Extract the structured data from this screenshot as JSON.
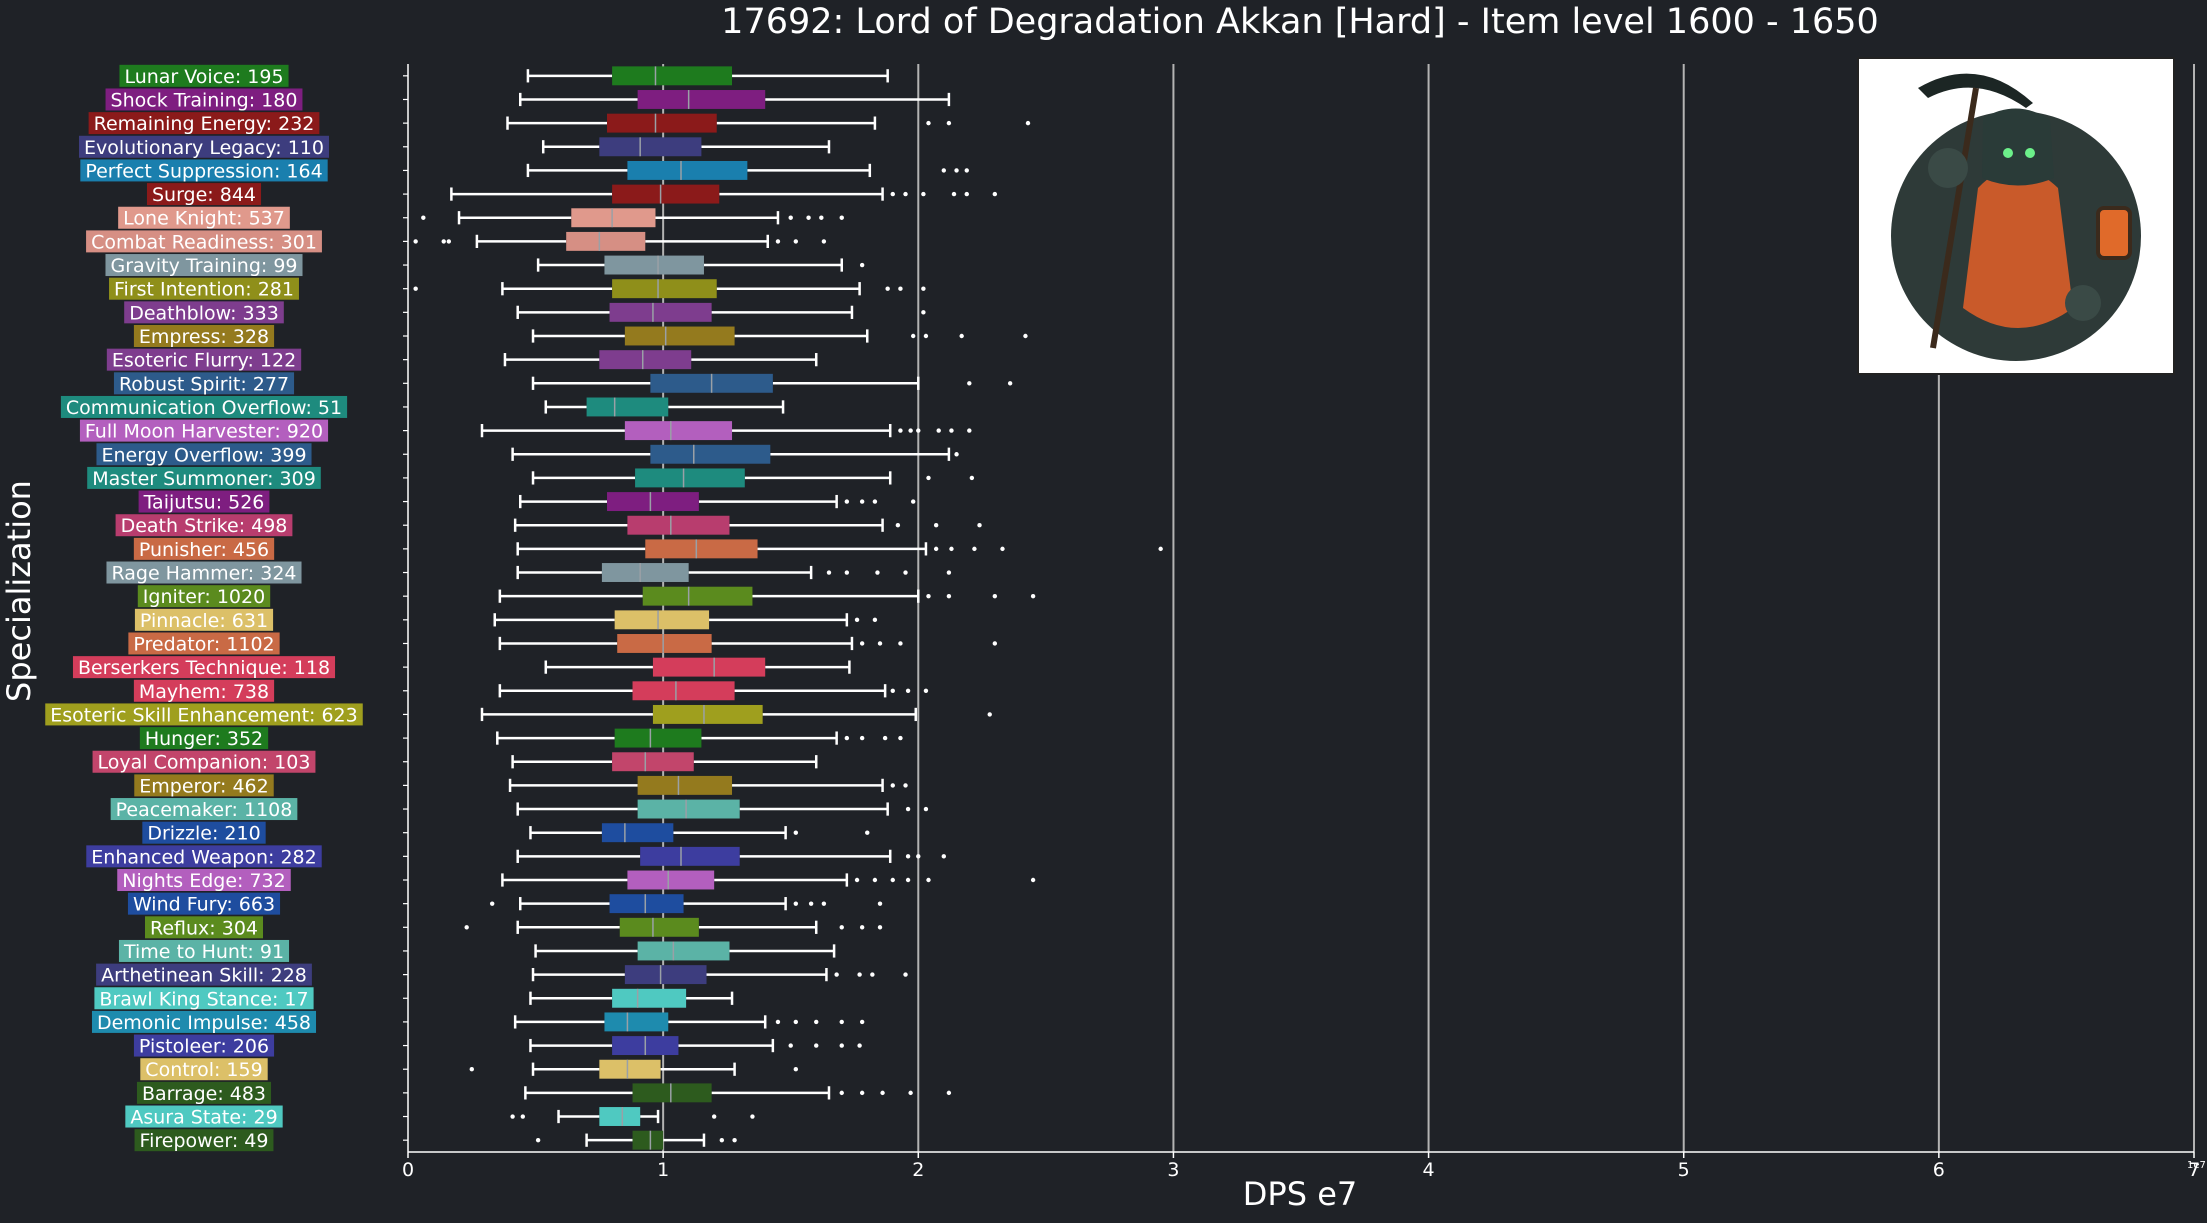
{
  "chart_data": {
    "type": "box",
    "title": "17692: Lord of Degradation Akkan [Hard] - Item level 1600 - 1650",
    "xlabel": "DPS e7",
    "ylabel": "Specialization",
    "offset_label": "1e7",
    "xlim": [
      0,
      7
    ],
    "xticks": [
      0,
      1,
      2,
      3,
      4,
      5,
      6,
      7
    ],
    "grid": "vertical",
    "categories": [
      {
        "label": "Lunar Voice: 195",
        "color": "#1e7b1e",
        "whisker_low": 0.47,
        "q1": 0.8,
        "median": 0.97,
        "q3": 1.27,
        "whisker_high": 1.88,
        "outliers": []
      },
      {
        "label": "Shock Training: 180",
        "color": "#7e1e80",
        "whisker_low": 0.44,
        "q1": 0.9,
        "median": 1.1,
        "q3": 1.4,
        "whisker_high": 2.12,
        "outliers": []
      },
      {
        "label": "Remaining Energy: 232",
        "color": "#8b1a1a",
        "whisker_low": 0.39,
        "q1": 0.78,
        "median": 0.97,
        "q3": 1.21,
        "whisker_high": 1.83,
        "outliers": [
          2.04,
          2.12,
          2.43
        ]
      },
      {
        "label": "Evolutionary Legacy: 110",
        "color": "#3d3d7e",
        "whisker_low": 0.53,
        "q1": 0.75,
        "median": 0.91,
        "q3": 1.15,
        "whisker_high": 1.65,
        "outliers": []
      },
      {
        "label": "Perfect Suppression: 164",
        "color": "#1a7fae",
        "whisker_low": 0.47,
        "q1": 0.86,
        "median": 1.07,
        "q3": 1.33,
        "whisker_high": 1.81,
        "outliers": [
          2.1,
          2.15,
          2.19
        ]
      },
      {
        "label": "Surge: 844",
        "color": "#8b1a1a",
        "whisker_low": 0.17,
        "q1": 0.8,
        "median": 0.99,
        "q3": 1.22,
        "whisker_high": 1.86,
        "outliers": [
          1.9,
          1.95,
          2.02,
          2.14,
          2.19,
          2.3
        ]
      },
      {
        "label": "Lone Knight: 537",
        "color": "#e0998c",
        "whisker_low": 0.2,
        "q1": 0.64,
        "median": 0.8,
        "q3": 0.97,
        "whisker_high": 1.45,
        "outliers": [
          0.06,
          1.5,
          1.57,
          1.62,
          1.7
        ]
      },
      {
        "label": "Combat Readiness: 301",
        "color": "#d68f84",
        "whisker_low": 0.27,
        "q1": 0.62,
        "median": 0.75,
        "q3": 0.93,
        "whisker_high": 1.41,
        "outliers": [
          0.03,
          0.14,
          0.16,
          1.45,
          1.52,
          1.63
        ]
      },
      {
        "label": "Gravity Training: 99",
        "color": "#7f969f",
        "whisker_low": 0.51,
        "q1": 0.77,
        "median": 0.98,
        "q3": 1.16,
        "whisker_high": 1.7,
        "outliers": [
          1.78
        ]
      },
      {
        "label": "First Intention: 281",
        "color": "#8f8f1a",
        "whisker_low": 0.37,
        "q1": 0.8,
        "median": 0.98,
        "q3": 1.21,
        "whisker_high": 1.77,
        "outliers": [
          0.03,
          1.88,
          1.93,
          2.02
        ]
      },
      {
        "label": "Deathblow: 333",
        "color": "#7e3d8e",
        "whisker_low": 0.43,
        "q1": 0.79,
        "median": 0.96,
        "q3": 1.19,
        "whisker_high": 1.74,
        "outliers": [
          2.02
        ]
      },
      {
        "label": "Empress: 328",
        "color": "#947a1e",
        "whisker_low": 0.49,
        "q1": 0.85,
        "median": 1.01,
        "q3": 1.28,
        "whisker_high": 1.8,
        "outliers": [
          1.98,
          2.03,
          2.17,
          2.42
        ]
      },
      {
        "label": "Esoteric Flurry: 122",
        "color": "#7e3d8e",
        "whisker_low": 0.38,
        "q1": 0.75,
        "median": 0.92,
        "q3": 1.11,
        "whisker_high": 1.6,
        "outliers": []
      },
      {
        "label": "Robust Spirit: 277",
        "color": "#2d5b8b",
        "whisker_low": 0.49,
        "q1": 0.95,
        "median": 1.19,
        "q3": 1.43,
        "whisker_high": 2.0,
        "outliers": [
          2.2,
          2.36
        ]
      },
      {
        "label": "Communication Overflow: 51",
        "color": "#1e8b7e",
        "whisker_low": 0.54,
        "q1": 0.7,
        "median": 0.81,
        "q3": 1.02,
        "whisker_high": 1.47,
        "outliers": []
      },
      {
        "label": "Full Moon Harvester: 920",
        "color": "#b35fbe",
        "whisker_low": 0.29,
        "q1": 0.85,
        "median": 1.03,
        "q3": 1.27,
        "whisker_high": 1.89,
        "outliers": [
          1.93,
          1.97,
          2.0,
          2.08,
          2.13,
          2.2
        ]
      },
      {
        "label": "Energy Overflow: 399",
        "color": "#2d5b8b",
        "whisker_low": 0.41,
        "q1": 0.95,
        "median": 1.12,
        "q3": 1.42,
        "whisker_high": 2.12,
        "outliers": [
          2.15
        ]
      },
      {
        "label": "Master Summoner: 309",
        "color": "#1e8b7e",
        "whisker_low": 0.49,
        "q1": 0.89,
        "median": 1.08,
        "q3": 1.32,
        "whisker_high": 1.89,
        "outliers": [
          2.04,
          2.21
        ]
      },
      {
        "label": "Taijutsu: 526",
        "color": "#7e1e80",
        "whisker_low": 0.44,
        "q1": 0.78,
        "median": 0.95,
        "q3": 1.14,
        "whisker_high": 1.68,
        "outliers": [
          1.72,
          1.78,
          1.83,
          1.98
        ]
      },
      {
        "label": "Death Strike: 498",
        "color": "#b83d6e",
        "whisker_low": 0.42,
        "q1": 0.86,
        "median": 1.03,
        "q3": 1.26,
        "whisker_high": 1.86,
        "outliers": [
          1.92,
          2.07,
          2.24
        ]
      },
      {
        "label": "Punisher: 456",
        "color": "#c96a45",
        "whisker_low": 0.43,
        "q1": 0.93,
        "median": 1.13,
        "q3": 1.37,
        "whisker_high": 2.03,
        "outliers": [
          2.07,
          2.13,
          2.22,
          2.33,
          2.95
        ]
      },
      {
        "label": "Rage Hammer: 324",
        "color": "#7f969f",
        "whisker_low": 0.43,
        "q1": 0.76,
        "median": 0.91,
        "q3": 1.1,
        "whisker_high": 1.58,
        "outliers": [
          1.65,
          1.72,
          1.84,
          1.95,
          2.12
        ]
      },
      {
        "label": "Igniter: 1020",
        "color": "#5b8b1e",
        "whisker_low": 0.36,
        "q1": 0.92,
        "median": 1.1,
        "q3": 1.35,
        "whisker_high": 2.0,
        "outliers": [
          2.04,
          2.12,
          2.3,
          2.45
        ]
      },
      {
        "label": "Pinnacle: 631",
        "color": "#dcc068",
        "whisker_low": 0.34,
        "q1": 0.81,
        "median": 0.98,
        "q3": 1.18,
        "whisker_high": 1.72,
        "outliers": [
          1.76,
          1.83
        ]
      },
      {
        "label": "Predator: 1102",
        "color": "#c96a45",
        "whisker_low": 0.36,
        "q1": 0.82,
        "median": 1.0,
        "q3": 1.19,
        "whisker_high": 1.74,
        "outliers": [
          1.78,
          1.85,
          1.93,
          2.3
        ]
      },
      {
        "label": "Berserkers Technique: 118",
        "color": "#d43d5b",
        "whisker_low": 0.54,
        "q1": 0.96,
        "median": 1.2,
        "q3": 1.4,
        "whisker_high": 1.73,
        "outliers": []
      },
      {
        "label": "Mayhem: 738",
        "color": "#d43d5b",
        "whisker_low": 0.36,
        "q1": 0.88,
        "median": 1.05,
        "q3": 1.28,
        "whisker_high": 1.87,
        "outliers": [
          1.9,
          1.96,
          2.03
        ]
      },
      {
        "label": "Esoteric Skill Enhancement: 623",
        "color": "#9f9f1e",
        "whisker_low": 0.29,
        "q1": 0.96,
        "median": 1.16,
        "q3": 1.39,
        "whisker_high": 1.99,
        "outliers": [
          2.28
        ]
      },
      {
        "label": "Hunger: 352",
        "color": "#1e7b1e",
        "whisker_low": 0.35,
        "q1": 0.81,
        "median": 0.95,
        "q3": 1.15,
        "whisker_high": 1.68,
        "outliers": [
          1.72,
          1.78,
          1.87,
          1.93
        ]
      },
      {
        "label": "Loyal Companion: 103",
        "color": "#c2456b",
        "whisker_low": 0.41,
        "q1": 0.8,
        "median": 0.93,
        "q3": 1.12,
        "whisker_high": 1.6,
        "outliers": []
      },
      {
        "label": "Emperor: 462",
        "color": "#947a1e",
        "whisker_low": 0.4,
        "q1": 0.9,
        "median": 1.06,
        "q3": 1.27,
        "whisker_high": 1.86,
        "outliers": [
          1.9,
          1.95
        ]
      },
      {
        "label": "Peacemaker: 1108",
        "color": "#5bb3a6",
        "whisker_low": 0.43,
        "q1": 0.9,
        "median": 1.09,
        "q3": 1.3,
        "whisker_high": 1.88,
        "outliers": [
          1.96,
          2.03
        ]
      },
      {
        "label": "Drizzle: 210",
        "color": "#1e4d9f",
        "whisker_low": 0.48,
        "q1": 0.76,
        "median": 0.85,
        "q3": 1.04,
        "whisker_high": 1.48,
        "outliers": [
          1.52,
          1.8
        ]
      },
      {
        "label": "Enhanced Weapon: 282",
        "color": "#3d3d9f",
        "whisker_low": 0.43,
        "q1": 0.91,
        "median": 1.07,
        "q3": 1.3,
        "whisker_high": 1.89,
        "outliers": [
          1.96,
          2.0,
          2.1
        ]
      },
      {
        "label": "Nights Edge: 732",
        "color": "#b35fbe",
        "whisker_low": 0.37,
        "q1": 0.86,
        "median": 1.02,
        "q3": 1.2,
        "whisker_high": 1.72,
        "outliers": [
          1.76,
          1.83,
          1.9,
          1.96,
          2.04,
          2.45
        ]
      },
      {
        "label": "Wind Fury: 663",
        "color": "#1e4d9f",
        "whisker_low": 0.44,
        "q1": 0.79,
        "median": 0.93,
        "q3": 1.08,
        "whisker_high": 1.48,
        "outliers": [
          0.33,
          1.52,
          1.58,
          1.63,
          1.85
        ]
      },
      {
        "label": "Reflux: 304",
        "color": "#5b8b1e",
        "whisker_low": 0.43,
        "q1": 0.83,
        "median": 0.96,
        "q3": 1.14,
        "whisker_high": 1.6,
        "outliers": [
          0.23,
          1.7,
          1.78,
          1.85
        ]
      },
      {
        "label": "Time to Hunt: 91",
        "color": "#5bb3a6",
        "whisker_low": 0.5,
        "q1": 0.9,
        "median": 1.04,
        "q3": 1.26,
        "whisker_high": 1.67,
        "outliers": []
      },
      {
        "label": "Arthetinean Skill: 228",
        "color": "#3d3d7e",
        "whisker_low": 0.49,
        "q1": 0.85,
        "median": 0.99,
        "q3": 1.17,
        "whisker_high": 1.64,
        "outliers": [
          1.68,
          1.77,
          1.82,
          1.95
        ]
      },
      {
        "label": "Brawl King Stance: 17",
        "color": "#4fc9c1",
        "whisker_low": 0.48,
        "q1": 0.8,
        "median": 0.9,
        "q3": 1.09,
        "whisker_high": 1.27,
        "outliers": []
      },
      {
        "label": "Demonic Impulse: 458",
        "color": "#1e8bae",
        "whisker_low": 0.42,
        "q1": 0.77,
        "median": 0.86,
        "q3": 1.02,
        "whisker_high": 1.4,
        "outliers": [
          1.45,
          1.52,
          1.6,
          1.7,
          1.78
        ]
      },
      {
        "label": "Pistoleer: 206",
        "color": "#3d3d9f",
        "whisker_low": 0.48,
        "q1": 0.8,
        "median": 0.93,
        "q3": 1.06,
        "whisker_high": 1.43,
        "outliers": [
          1.5,
          1.6,
          1.7,
          1.77
        ]
      },
      {
        "label": "Control: 159",
        "color": "#dcc068",
        "whisker_low": 0.49,
        "q1": 0.75,
        "median": 0.86,
        "q3": 0.99,
        "whisker_high": 1.28,
        "outliers": [
          0.25,
          1.52
        ]
      },
      {
        "label": "Barrage: 483",
        "color": "#2d5b1e",
        "whisker_low": 0.46,
        "q1": 0.88,
        "median": 1.03,
        "q3": 1.19,
        "whisker_high": 1.65,
        "outliers": [
          1.7,
          1.78,
          1.86,
          1.97,
          2.12
        ]
      },
      {
        "label": "Asura State: 29",
        "color": "#4fc9c1",
        "whisker_low": 0.59,
        "q1": 0.75,
        "median": 0.84,
        "q3": 0.91,
        "whisker_high": 0.98,
        "outliers": [
          0.41,
          0.45,
          1.2,
          1.35
        ]
      },
      {
        "label": "Firepower: 49",
        "color": "#2d5b1e",
        "whisker_low": 0.7,
        "q1": 0.88,
        "median": 0.95,
        "q3": 1.0,
        "whisker_high": 1.16,
        "outliers": [
          0.51,
          1.23,
          1.28
        ]
      }
    ]
  },
  "boss_portrait": {
    "icon": "reaper-boss-portrait",
    "frame": "#ffffff",
    "bg": "#ffffff",
    "accent": "#e06a2a"
  },
  "colors": {
    "background": "#1f2227",
    "grid": "#b3b3b3",
    "axis": "#ffffff",
    "text": "#ffffff"
  }
}
